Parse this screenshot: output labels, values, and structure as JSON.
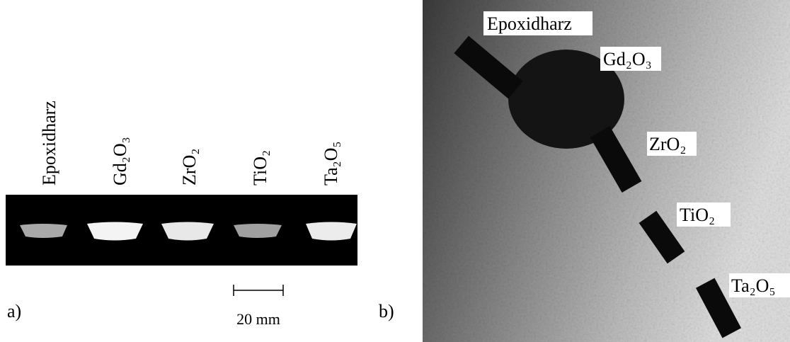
{
  "panel_a": {
    "label": "a)",
    "samples": [
      "Epoxidharz",
      "Gd₂O₃",
      "ZrO₂",
      "TiO₂",
      "Ta₂O₅"
    ],
    "scale_bar": "20 mm"
  },
  "panel_b": {
    "label": "b)",
    "samples": [
      "Epoxidharz",
      "Gd₂O₃",
      "ZrO₂",
      "TiO₂",
      "Ta₂O₅"
    ]
  }
}
